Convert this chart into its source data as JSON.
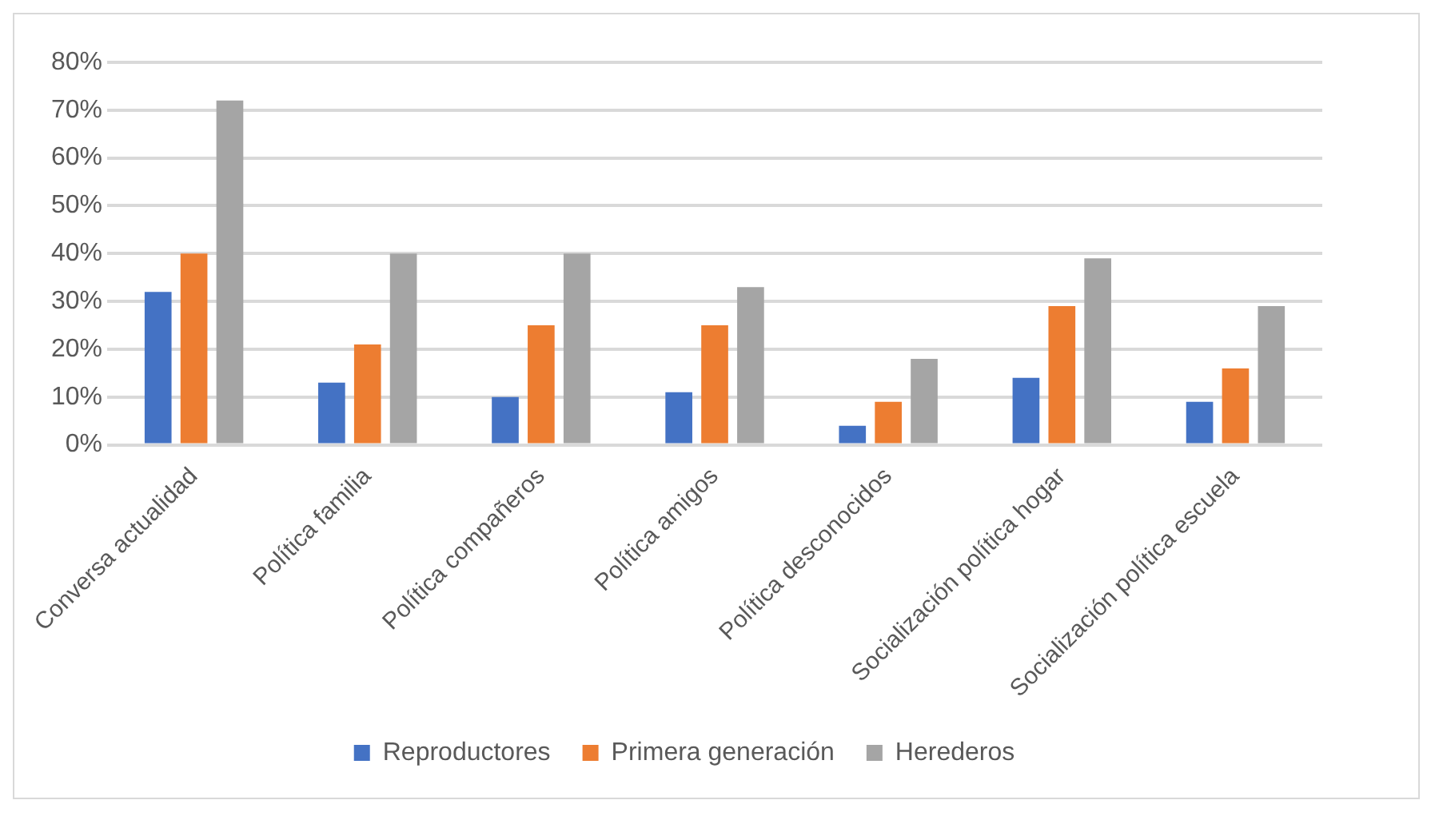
{
  "chart_data": {
    "type": "bar",
    "categories": [
      "Conversa actualidad",
      "Política familia",
      "Política compañeros",
      "Política amigos",
      "Política desconocidos",
      "Socialización política hogar",
      "Socialización política escuela"
    ],
    "series": [
      {
        "name": "Reproductores",
        "color": "#4472c4",
        "values": [
          32,
          13,
          10,
          11,
          4,
          14,
          9
        ]
      },
      {
        "name": "Primera generación",
        "color": "#ed7d31",
        "values": [
          40,
          21,
          25,
          25,
          9,
          29,
          16
        ]
      },
      {
        "name": "Herederos",
        "color": "#a5a5a5",
        "values": [
          72,
          40,
          40,
          33,
          18,
          39,
          29
        ]
      }
    ],
    "ylim": [
      0,
      80
    ],
    "yticks": [
      {
        "value": 0,
        "label": "0%"
      },
      {
        "value": 10,
        "label": "10%"
      },
      {
        "value": 20,
        "label": "20%"
      },
      {
        "value": 30,
        "label": "30%"
      },
      {
        "value": 40,
        "label": "40%"
      },
      {
        "value": 50,
        "label": "50%"
      },
      {
        "value": 60,
        "label": "60%"
      },
      {
        "value": 70,
        "label": "70%"
      },
      {
        "value": 80,
        "label": "80%"
      }
    ],
    "grid": "y",
    "legend": "bottom"
  }
}
